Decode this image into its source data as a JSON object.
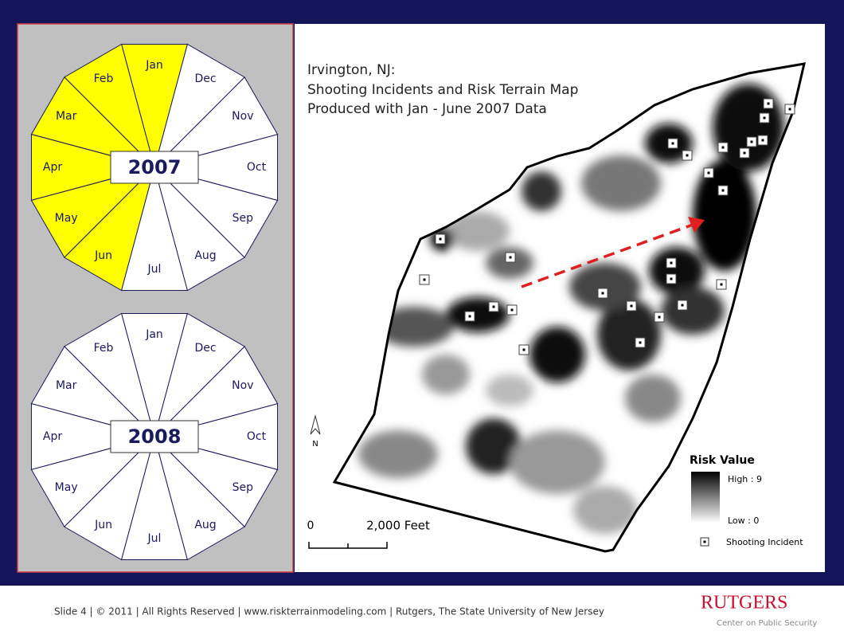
{
  "calendars": [
    {
      "year": "2007",
      "months": [
        "Jan",
        "Feb",
        "Mar",
        "Apr",
        "May",
        "Jun",
        "Jul",
        "Aug",
        "Sep",
        "Oct",
        "Nov",
        "Dec"
      ],
      "highlighted": [
        true,
        true,
        true,
        true,
        true,
        true,
        false,
        false,
        false,
        false,
        false,
        false
      ]
    },
    {
      "year": "2008",
      "months": [
        "Jan",
        "Feb",
        "Mar",
        "Apr",
        "May",
        "Jun",
        "Jul",
        "Aug",
        "Sep",
        "Oct",
        "Nov",
        "Dec"
      ],
      "highlighted": [
        false,
        false,
        false,
        false,
        false,
        false,
        false,
        false,
        false,
        false,
        false,
        false
      ]
    }
  ],
  "map": {
    "title_lines": [
      "Irvington, NJ:",
      "Shooting Incidents and Risk Terrain Map",
      "Produced with Jan - June 2007 Data"
    ],
    "north": "N",
    "scale": {
      "start": "0",
      "end": "2,000 Feet"
    },
    "legend": {
      "title": "Risk Value",
      "high": "High : 9",
      "low": "Low : 0",
      "incident": "Shooting Incident"
    }
  },
  "footer": {
    "text": "Slide 4 | © 2011 | All Rights Reserved | www.riskterrainmodeling.com | Rutgers, The State University of New Jersey",
    "logo": "RUTGERS",
    "logo_sub": "Center on Public Security"
  }
}
